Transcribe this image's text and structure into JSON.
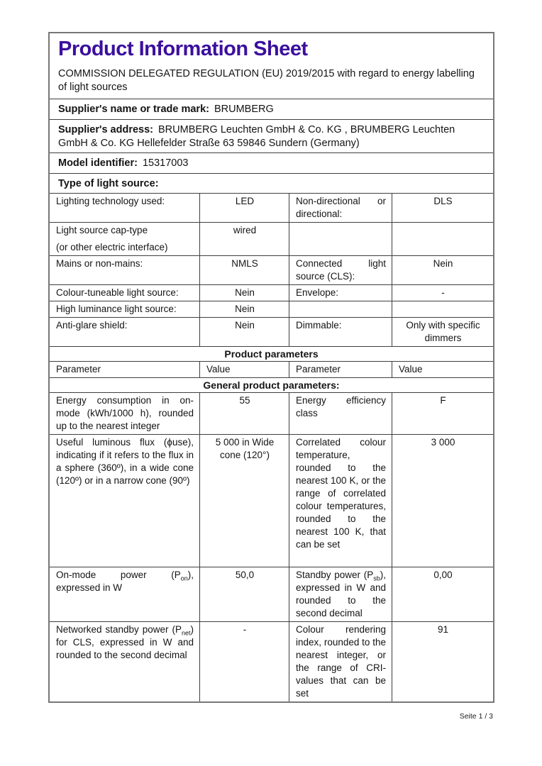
{
  "header": {
    "title": "Product Information Sheet",
    "regulation": "COMMISSION DELEGATED REGULATION (EU) 2019/2015 with regard to energy labelling of light sources",
    "supplier_name_label": "Supplier's name or trade mark:",
    "supplier_name": "BRUMBERG",
    "supplier_address_label": "Supplier's address:",
    "supplier_address": "BRUMBERG Leuchten GmbH & Co. KG , BRUMBERG Leuchten GmbH & Co. KG Hellefelder Straße 63 59846 Sundern (Germany)",
    "model_identifier_label": "Model identifier:",
    "model_identifier": "15317003",
    "type_section_label": "Type of light source:"
  },
  "type_table": {
    "rows": [
      {
        "p1": "Lighting technology used:",
        "v1": "LED",
        "p2": "Non-directional or directional:",
        "v2": "DLS"
      },
      {
        "p1": "Light source cap-type",
        "p1b": "(or other electric interface)",
        "v1": "wired",
        "p2": "",
        "v2": ""
      },
      {
        "p1": "Mains or non-mains:",
        "v1": "NMLS",
        "p2": "Connected light source (CLS):",
        "v2": "Nein"
      },
      {
        "p1": "Colour-tuneable light source:",
        "v1": "Nein",
        "p2": "Envelope:",
        "v2": "-"
      },
      {
        "p1": "High luminance light source:",
        "v1": "Nein",
        "p2": "",
        "v2": ""
      },
      {
        "p1": "Anti-glare shield:",
        "v1": "Nein",
        "p2": "Dimmable:",
        "v2": "Only with specific dimmers"
      }
    ]
  },
  "product_parameters": {
    "section_title": "Product parameters",
    "col_headers": [
      "Parameter",
      "Value",
      "Parameter",
      "Value"
    ],
    "general_title": "General product parameters:",
    "rows": [
      {
        "p1": "Energy consumption in on-mode (kWh/1000 h), rounded up to the nearest integer",
        "v1": "55",
        "p2": "Energy efficiency class",
        "v2": "F"
      },
      {
        "p1": "Useful luminous flux (ϕuse), indicating if it refers to the flux in a sphere (360º), in a wide cone (120º) or in a narrow cone (90º)",
        "v1": "5 000 in Wide cone (120°)",
        "p2": "Correlated colour temperature, rounded to the nearest 100 K, or the range of correlated colour temperatures, rounded to the nearest 100 K, that can be set",
        "v2": "3 000"
      },
      {
        "p1": "On-mode power (P~on~), expressed in W",
        "v1": "50,0",
        "p2": "Standby power (P~sb~), expressed in W and rounded to the second decimal",
        "v2": "0,00"
      },
      {
        "p1": "Networked standby power (P~net~) for CLS, expressed in W and rounded to the second decimal",
        "v1": "-",
        "p2": "Colour rendering index, rounded to the nearest integer, or the range of CRI-values that can be set",
        "v2": "91"
      }
    ]
  },
  "footer": {
    "page_indicator": "Seite 1 / 3"
  }
}
